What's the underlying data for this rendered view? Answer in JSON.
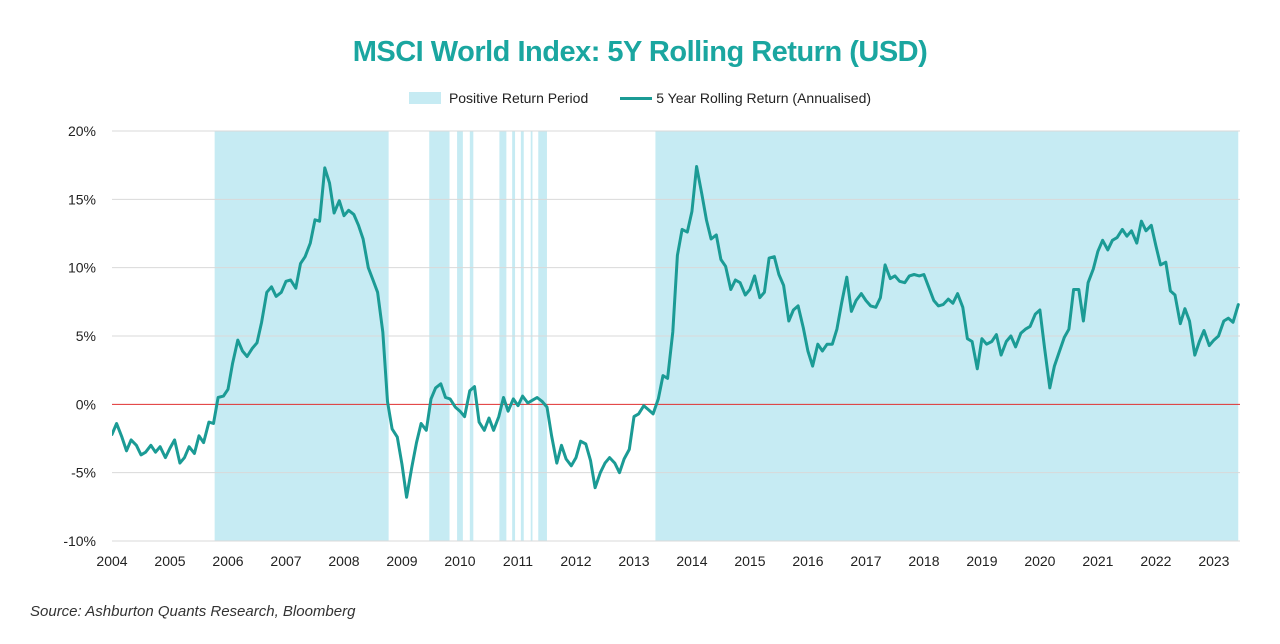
{
  "chart_data": {
    "type": "line",
    "title": "MSCI World Index: 5Y Rolling Return (USD)",
    "xlabel": "",
    "ylabel": "",
    "xlim": [
      2004.0,
      2023.45
    ],
    "ylim": [
      -10,
      20
    ],
    "y_ticks": [
      -10,
      -5,
      0,
      5,
      10,
      15,
      20
    ],
    "y_tick_labels": [
      "-10%",
      "-5%",
      "0%",
      "5%",
      "10%",
      "15%",
      "20%"
    ],
    "x_ticks": [
      2004,
      2005,
      2006,
      2007,
      2008,
      2009,
      2010,
      2011,
      2012,
      2013,
      2014,
      2015,
      2016,
      2017,
      2018,
      2019,
      2020,
      2021,
      2022,
      2023
    ],
    "x_tick_labels": [
      "2004",
      "2005",
      "2006",
      "2007",
      "2008",
      "2009",
      "2010",
      "2011",
      "2012",
      "2013",
      "2014",
      "2015",
      "2016",
      "2017",
      "2018",
      "2019",
      "2020",
      "2021",
      "2022",
      "2023"
    ],
    "grid": "horizontal",
    "legend_position": "top-center",
    "zero_line_color": "#e03030",
    "series": [
      {
        "name": "5 Year Rolling Return (Annualised)",
        "color": "#1b9b95",
        "x": [
          2004.0,
          2004.08,
          2004.17,
          2004.25,
          2004.33,
          2004.42,
          2004.5,
          2004.58,
          2004.67,
          2004.75,
          2004.83,
          2004.92,
          2005.0,
          2005.08,
          2005.17,
          2005.25,
          2005.33,
          2005.42,
          2005.5,
          2005.58,
          2005.67,
          2005.75,
          2005.83,
          2005.92,
          2006.0,
          2006.08,
          2006.17,
          2006.25,
          2006.33,
          2006.42,
          2006.5,
          2006.58,
          2006.67,
          2006.75,
          2006.83,
          2006.92,
          2007.0,
          2007.08,
          2007.17,
          2007.25,
          2007.33,
          2007.42,
          2007.5,
          2007.58,
          2007.67,
          2007.75,
          2007.83,
          2007.92,
          2008.0,
          2008.08,
          2008.17,
          2008.25,
          2008.33,
          2008.42,
          2008.5,
          2008.58,
          2008.67,
          2008.75,
          2008.83,
          2008.92,
          2009.0,
          2009.08,
          2009.17,
          2009.25,
          2009.33,
          2009.42,
          2009.5,
          2009.58,
          2009.67,
          2009.75,
          2009.83,
          2009.92,
          2010.0,
          2010.08,
          2010.17,
          2010.25,
          2010.33,
          2010.42,
          2010.5,
          2010.58,
          2010.67,
          2010.75,
          2010.83,
          2010.92,
          2011.0,
          2011.08,
          2011.17,
          2011.25,
          2011.33,
          2011.42,
          2011.5,
          2011.58,
          2011.67,
          2011.75,
          2011.83,
          2011.92,
          2012.0,
          2012.08,
          2012.17,
          2012.25,
          2012.33,
          2012.42,
          2012.5,
          2012.58,
          2012.67,
          2012.75,
          2012.83,
          2012.92,
          2013.0,
          2013.08,
          2013.17,
          2013.25,
          2013.33,
          2013.42,
          2013.5,
          2013.58,
          2013.67,
          2013.75,
          2013.83,
          2013.92,
          2014.0,
          2014.08,
          2014.17,
          2014.25,
          2014.33,
          2014.42,
          2014.5,
          2014.58,
          2014.67,
          2014.75,
          2014.83,
          2014.92,
          2015.0,
          2015.08,
          2015.17,
          2015.25,
          2015.33,
          2015.42,
          2015.5,
          2015.58,
          2015.67,
          2015.75,
          2015.83,
          2015.92,
          2016.0,
          2016.08,
          2016.17,
          2016.25,
          2016.33,
          2016.42,
          2016.5,
          2016.58,
          2016.67,
          2016.75,
          2016.83,
          2016.92,
          2017.0,
          2017.08,
          2017.17,
          2017.25,
          2017.33,
          2017.42,
          2017.5,
          2017.58,
          2017.67,
          2017.75,
          2017.83,
          2017.92,
          2018.0,
          2018.08,
          2018.17,
          2018.25,
          2018.33,
          2018.42,
          2018.5,
          2018.58,
          2018.67,
          2018.75,
          2018.83,
          2018.92,
          2019.0,
          2019.08,
          2019.17,
          2019.25,
          2019.33,
          2019.42,
          2019.5,
          2019.58,
          2019.67,
          2019.75,
          2019.83,
          2019.92,
          2020.0,
          2020.08,
          2020.17,
          2020.25,
          2020.33,
          2020.42,
          2020.5,
          2020.58,
          2020.67,
          2020.75,
          2020.83,
          2020.92,
          2021.0,
          2021.08,
          2021.17,
          2021.25,
          2021.33,
          2021.42,
          2021.5,
          2021.58,
          2021.67,
          2021.75,
          2021.83,
          2021.92,
          2022.0,
          2022.08,
          2022.17,
          2022.25,
          2022.33,
          2022.42,
          2022.5,
          2022.58,
          2022.67,
          2022.75,
          2022.83,
          2022.92,
          2023.0,
          2023.08,
          2023.17,
          2023.25,
          2023.33,
          2023.42
        ],
        "values": [
          -2.2,
          -1.4,
          -2.4,
          -3.4,
          -2.6,
          -3.0,
          -3.7,
          -3.5,
          -3.0,
          -3.5,
          -3.1,
          -3.9,
          -3.2,
          -2.6,
          -4.3,
          -3.9,
          -3.1,
          -3.6,
          -2.3,
          -2.8,
          -1.3,
          -1.4,
          0.5,
          0.6,
          1.1,
          3.0,
          4.7,
          3.9,
          3.5,
          4.1,
          4.5,
          6.0,
          8.2,
          8.6,
          7.9,
          8.2,
          9.0,
          9.1,
          8.5,
          10.3,
          10.8,
          11.8,
          13.5,
          13.4,
          17.3,
          16.2,
          14.0,
          14.9,
          13.8,
          14.2,
          13.9,
          13.1,
          12.1,
          10.0,
          9.1,
          8.2,
          5.3,
          0.2,
          -1.8,
          -2.4,
          -4.4,
          -6.8,
          -4.6,
          -2.8,
          -1.4,
          -1.9,
          0.4,
          1.2,
          1.5,
          0.5,
          0.4,
          -0.2,
          -0.5,
          -0.9,
          1.0,
          1.3,
          -1.3,
          -1.9,
          -1.0,
          -1.9,
          -0.9,
          0.5,
          -0.5,
          0.4,
          -0.1,
          0.6,
          0.1,
          0.3,
          0.5,
          0.2,
          -0.2,
          -2.3,
          -4.3,
          -3.0,
          -4.0,
          -4.5,
          -3.9,
          -2.7,
          -2.9,
          -4.1,
          -6.1,
          -5.0,
          -4.3,
          -3.9,
          -4.3,
          -5.0,
          -4.0,
          -3.3,
          -0.9,
          -0.7,
          -0.1,
          -0.4,
          -0.7,
          0.4,
          2.1,
          1.9,
          5.3,
          10.9,
          12.8,
          12.6,
          14.1,
          17.4,
          15.4,
          13.5,
          12.1,
          12.4,
          10.6,
          10.1,
          8.4,
          9.1,
          8.9,
          8.0,
          8.4,
          9.4,
          7.8,
          8.2,
          10.7,
          10.8,
          9.5,
          8.7,
          6.1,
          6.9,
          7.2,
          5.6,
          3.9,
          2.8,
          4.4,
          3.9,
          4.4,
          4.4,
          5.5,
          7.4,
          9.3,
          6.8,
          7.6,
          8.1,
          7.6,
          7.2,
          7.1,
          7.8,
          10.2,
          9.2,
          9.4,
          9.0,
          8.9,
          9.4,
          9.5,
          9.4,
          9.5,
          8.6,
          7.6,
          7.2,
          7.3,
          7.7,
          7.4,
          8.1,
          7.1,
          4.8,
          4.6,
          2.6,
          4.8,
          4.4,
          4.6,
          5.1,
          3.6,
          4.6,
          5.0,
          4.2,
          5.2,
          5.5,
          5.7,
          6.6,
          6.9,
          4.1,
          1.2,
          2.8,
          3.8,
          4.9,
          5.5,
          8.4,
          8.4,
          6.1,
          8.9,
          9.9,
          11.2,
          12.0,
          11.3,
          12.0,
          12.2,
          12.8,
          12.3,
          12.7,
          11.8,
          13.4,
          12.7,
          13.1,
          11.6,
          10.2,
          10.4,
          8.3,
          8.0,
          5.9,
          7.0,
          6.1,
          3.6,
          4.6,
          5.4,
          4.3,
          4.7,
          5.0,
          6.1,
          6.3,
          6.0,
          7.3
        ]
      }
    ],
    "areas": [
      {
        "name": "Positive Return Period",
        "color": "#c6ebf3",
        "spans": [
          [
            2005.77,
            2008.77
          ],
          [
            2009.47,
            2009.82
          ],
          [
            2009.95,
            2010.05
          ],
          [
            2010.17,
            2010.23
          ],
          [
            2010.68,
            2010.8
          ],
          [
            2010.9,
            2010.95
          ],
          [
            2011.05,
            2011.1
          ],
          [
            2011.22,
            2011.25
          ],
          [
            2011.35,
            2011.5
          ],
          [
            2013.37,
            2023.42
          ]
        ]
      }
    ]
  },
  "source": "Source: Ashburton Quants Research, Bloomberg"
}
